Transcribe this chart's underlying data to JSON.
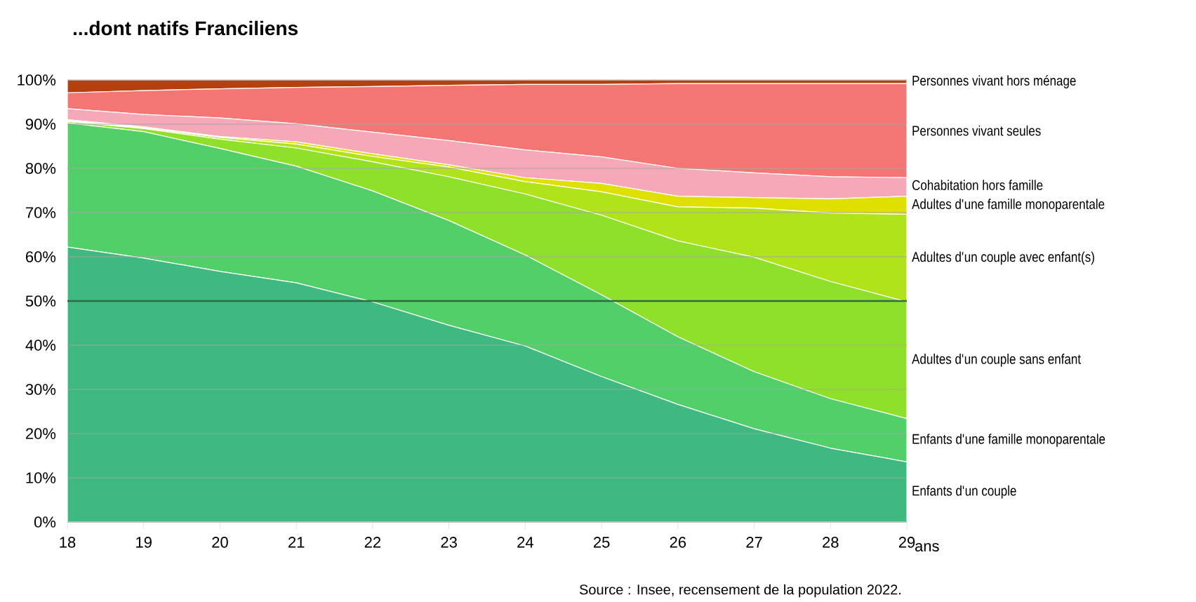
{
  "chart_data": {
    "type": "area",
    "title": "...dont natifs Franciliens",
    "xlabel": "ans",
    "stacked": true,
    "grid": "y",
    "legend": false,
    "x": [
      18,
      19,
      20,
      21,
      22,
      23,
      24,
      25,
      26,
      27,
      28,
      29
    ],
    "xlim": [
      18,
      29
    ],
    "xticks": [
      18,
      19,
      20,
      21,
      22,
      23,
      24,
      25,
      26,
      27,
      28,
      29
    ],
    "ylim": [
      0,
      100
    ],
    "yticks": [
      {
        "value": 0,
        "label": "0%"
      },
      {
        "value": 10,
        "label": "10%"
      },
      {
        "value": 20,
        "label": "20%"
      },
      {
        "value": 30,
        "label": "30%"
      },
      {
        "value": 40,
        "label": "40%"
      },
      {
        "value": 50,
        "label": "50%"
      },
      {
        "value": 60,
        "label": "60%"
      },
      {
        "value": 70,
        "label": "70%"
      },
      {
        "value": 80,
        "label": "80%"
      },
      {
        "value": 90,
        "label": "90%"
      },
      {
        "value": 100,
        "label": "100%"
      }
    ],
    "ref_lines": [
      {
        "axis": "y",
        "value": 50,
        "color": "#2e6b45"
      }
    ],
    "series": [
      {
        "name": "Enfants d'un couple",
        "color": "#3fb97f",
        "values": [
          62.2,
          59.7,
          56.7,
          54.1,
          49.8,
          44.5,
          39.8,
          32.9,
          26.6,
          21.1,
          16.7,
          13.6
        ]
      },
      {
        "name": "Enfants d'une famille monoparentale",
        "color": "#52cf69",
        "values": [
          28.1,
          28.6,
          27.8,
          26.4,
          25.1,
          23.7,
          20.6,
          18.5,
          15.3,
          12.9,
          11.2,
          9.8
        ]
      },
      {
        "name": "Adultes d'un couple sans enfant",
        "color": "#8ee02a",
        "values": [
          0.3,
          0.7,
          2.1,
          4.1,
          6.6,
          9.9,
          13.8,
          18.0,
          21.7,
          25.9,
          26.5,
          26.4
        ]
      },
      {
        "name": "Adultes d'un couple avec enfant(s)",
        "color": "#b0e31a",
        "values": [
          0.2,
          0.2,
          0.4,
          0.9,
          1.2,
          2.2,
          2.8,
          5.3,
          7.7,
          11.1,
          15.5,
          19.8
        ]
      },
      {
        "name": "Adultes d'une famille monoparentale",
        "color": "#e0e000",
        "values": [
          0.2,
          0.2,
          0.2,
          0.5,
          0.6,
          0.5,
          0.9,
          1.9,
          2.4,
          2.4,
          3.2,
          4.1
        ]
      },
      {
        "name": "Cohabitation hors famille",
        "color": "#f5a9b8",
        "values": [
          2.5,
          2.8,
          4.2,
          4.1,
          4.9,
          5.5,
          6.3,
          6.0,
          6.3,
          5.6,
          5.0,
          4.2
        ]
      },
      {
        "name": "Personnes vivant seules",
        "color": "#f47674",
        "values": [
          3.6,
          5.4,
          6.6,
          8.2,
          10.3,
          12.5,
          14.8,
          16.4,
          19.2,
          20.2,
          21.1,
          21.3
        ]
      },
      {
        "name": "Personnes vivant hors ménage",
        "color": "#b5400f",
        "values": [
          2.9,
          2.4,
          2.0,
          1.7,
          1.5,
          1.2,
          1.0,
          1.0,
          0.8,
          0.8,
          0.8,
          0.8
        ]
      }
    ],
    "annotations": [
      "Source : Insee, recensement de la population 2022."
    ]
  }
}
